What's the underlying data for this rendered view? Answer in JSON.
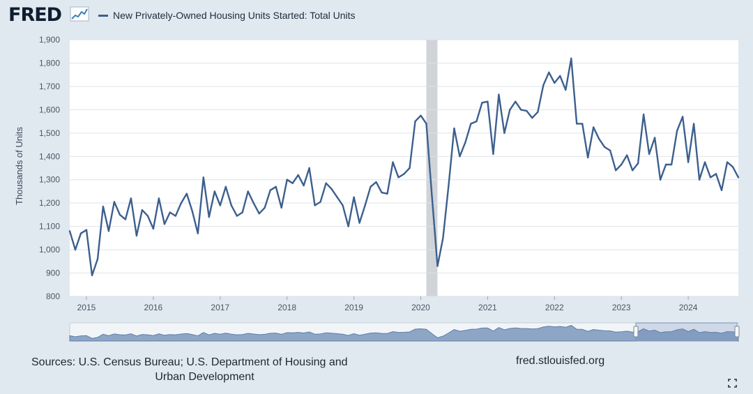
{
  "header": {
    "logo_text": "FRED",
    "legend_label": "New Privately-Owned Housing Units Started: Total Units"
  },
  "footer": {
    "sources_line1": "Sources: U.S. Census Bureau; U.S. Department of Housing and",
    "sources_line2": "Urban Development",
    "url": "fred.stlouisfed.org"
  },
  "icons": {
    "fullscreen": "fullscreen-icon",
    "logo_graph": "line-graph-icon"
  },
  "colors": {
    "series": "#3c5f8e",
    "background": "#e1e9f0",
    "plot": "#ffffff",
    "recession": "#d0d4d8"
  },
  "chart_data": {
    "type": "line",
    "title": "",
    "ylabel": "Thousands of Units",
    "xlabel": "",
    "ylim": [
      800,
      1900
    ],
    "yticks": [
      800,
      900,
      1000,
      1100,
      1200,
      1300,
      1400,
      1500,
      1600,
      1700,
      1800,
      1900
    ],
    "ytick_labels": [
      "800",
      "900",
      "1,000",
      "1,100",
      "1,200",
      "1,300",
      "1,400",
      "1,500",
      "1,600",
      "1,700",
      "1,800",
      "1,900"
    ],
    "xlim": [
      "2014-10",
      "2024-10"
    ],
    "xticks": [
      "2015-01",
      "2016-01",
      "2017-01",
      "2018-01",
      "2019-01",
      "2020-01",
      "2021-01",
      "2022-01",
      "2023-01",
      "2024-01"
    ],
    "xtick_labels": [
      "2015",
      "2016",
      "2017",
      "2018",
      "2019",
      "2020",
      "2021",
      "2022",
      "2023",
      "2024"
    ],
    "recession": {
      "start": "2020-02",
      "end": "2020-04"
    },
    "grid": true,
    "series": [
      {
        "start": "2014-10",
        "frequency": "monthly",
        "values": [
          1080,
          1000,
          1070,
          1085,
          890,
          960,
          1185,
          1080,
          1205,
          1150,
          1130,
          1220,
          1060,
          1170,
          1145,
          1090,
          1220,
          1110,
          1160,
          1145,
          1200,
          1240,
          1165,
          1070,
          1310,
          1140,
          1250,
          1190,
          1270,
          1190,
          1145,
          1160,
          1250,
          1200,
          1155,
          1180,
          1255,
          1270,
          1180,
          1300,
          1285,
          1320,
          1275,
          1350,
          1190,
          1205,
          1285,
          1260,
          1225,
          1190,
          1100,
          1225,
          1115,
          1190,
          1270,
          1290,
          1245,
          1240,
          1375,
          1310,
          1325,
          1350,
          1550,
          1575,
          1540,
          1230,
          930,
          1050,
          1275,
          1520,
          1400,
          1460,
          1540,
          1550,
          1630,
          1635,
          1410,
          1665,
          1500,
          1600,
          1635,
          1600,
          1595,
          1565,
          1590,
          1705,
          1760,
          1715,
          1745,
          1685,
          1820,
          1540,
          1540,
          1395,
          1525,
          1475,
          1440,
          1425,
          1340,
          1365,
          1405,
          1340,
          1370,
          1580,
          1410,
          1480,
          1300,
          1365,
          1365,
          1510,
          1570,
          1375,
          1540,
          1300,
          1375,
          1310,
          1325,
          1255,
          1375,
          1355,
          1310
        ]
      }
    ]
  }
}
